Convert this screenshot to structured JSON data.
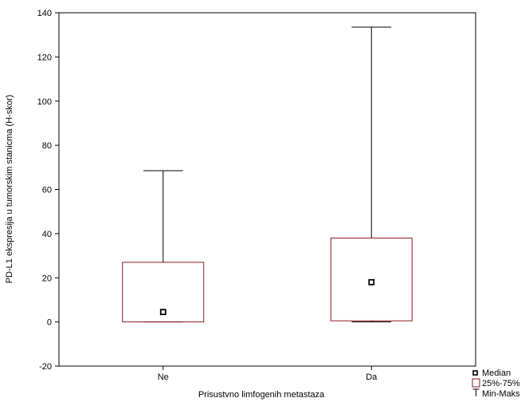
{
  "chart_data": {
    "type": "box",
    "xlabel": "Prisustvno limfogenih metastaza",
    "ylabel": "PD-L1 ekspresija u tumorskim stanicma (H-skor)",
    "ylim": [
      -20,
      140
    ],
    "yticks": [
      -20,
      0,
      20,
      40,
      60,
      80,
      100,
      120,
      140
    ],
    "categories": [
      "Ne",
      "Da"
    ],
    "boxes": [
      {
        "category": "Ne",
        "min": 0,
        "q1": 0,
        "median": 4.5,
        "q3": 27,
        "max": 68.5
      },
      {
        "category": "Da",
        "min": 0,
        "q1": 0.5,
        "median": 18,
        "q3": 38,
        "max": 133.5
      }
    ],
    "legend": {
      "position": "bottom-right",
      "items": [
        "Median",
        "25%-75%",
        "Min-Maks"
      ]
    },
    "colors": {
      "box": "#8b1a1a",
      "whisker": "#000000",
      "median_marker": "#000000"
    },
    "grid": false
  }
}
